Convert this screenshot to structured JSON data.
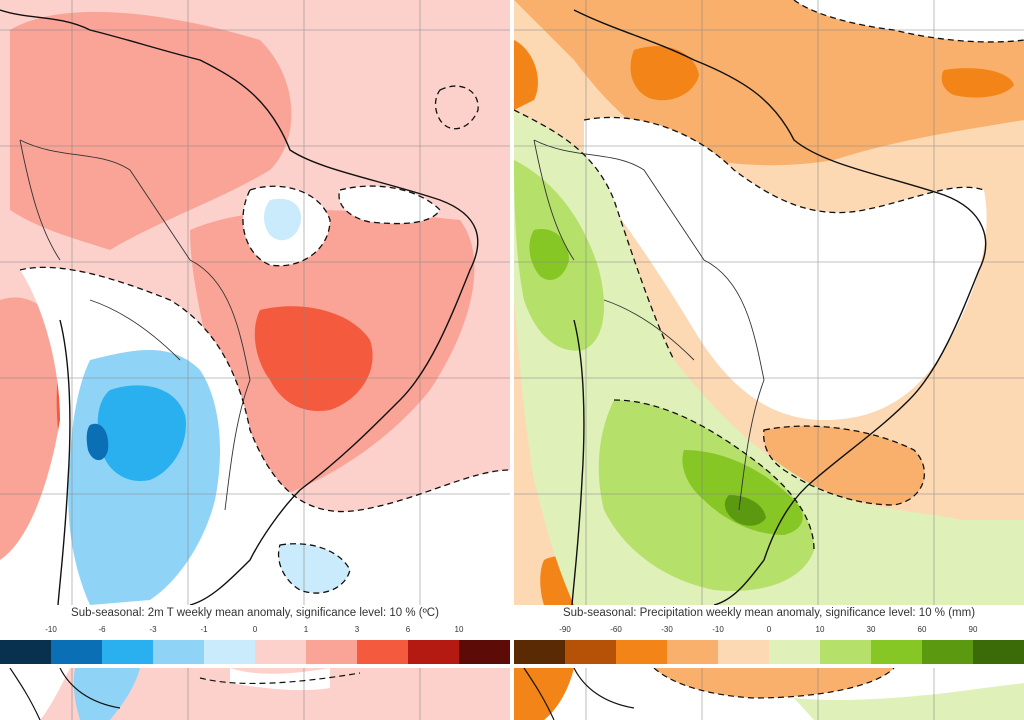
{
  "left_panel": {
    "title": "Sub-seasonal: 2m T weekly mean anomaly, significance level: 10 % (ºC)",
    "tick_labels": [
      "-10",
      "-6",
      "-3",
      "-1",
      "0",
      "1",
      "3",
      "6",
      "10"
    ],
    "colors": [
      "#08304f",
      "#0a6fb5",
      "#2ab0ee",
      "#8fd3f7",
      "#c9ebfb",
      "#fcd1cb",
      "#f9a497",
      "#f35a3e",
      "#b51a12",
      "#5c0b07"
    ],
    "background_color": "#fcd1cb"
  },
  "right_panel": {
    "title": "Sub-seasonal: Precipitation weekly mean anomaly, significance level: 10 % (mm)",
    "tick_labels": [
      "-90",
      "-60",
      "-30",
      "-10",
      "0",
      "10",
      "30",
      "60",
      "90"
    ],
    "colors": [
      "#5a2a05",
      "#b55208",
      "#f28418",
      "#f8b06c",
      "#fcd8b3",
      "#dff0b8",
      "#b5e06a",
      "#86c625",
      "#5b9a10",
      "#3b6a08"
    ],
    "background_color": "#fcd8b3"
  }
}
